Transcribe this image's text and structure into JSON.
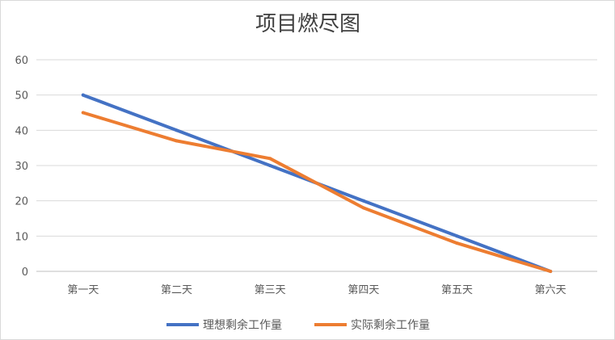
{
  "chart_data": {
    "type": "line",
    "title": "项目燃尽图",
    "xlabel": "",
    "ylabel": "",
    "categories": [
      "第一天",
      "第二天",
      "第三天",
      "第四天",
      "第五天",
      "第六天"
    ],
    "ylim": [
      0,
      60
    ],
    "yticks": [
      "0",
      "10",
      "20",
      "30",
      "40",
      "50",
      "60"
    ],
    "grid": true,
    "legend_position": "bottom",
    "series": [
      {
        "name": "理想剩余工作量",
        "values": [
          50,
          40,
          30,
          20,
          10,
          0
        ],
        "color": "#4472C4"
      },
      {
        "name": "实际剩余工作量",
        "values": [
          45,
          37,
          32,
          18,
          8,
          0
        ],
        "color": "#ED7D31"
      }
    ]
  }
}
